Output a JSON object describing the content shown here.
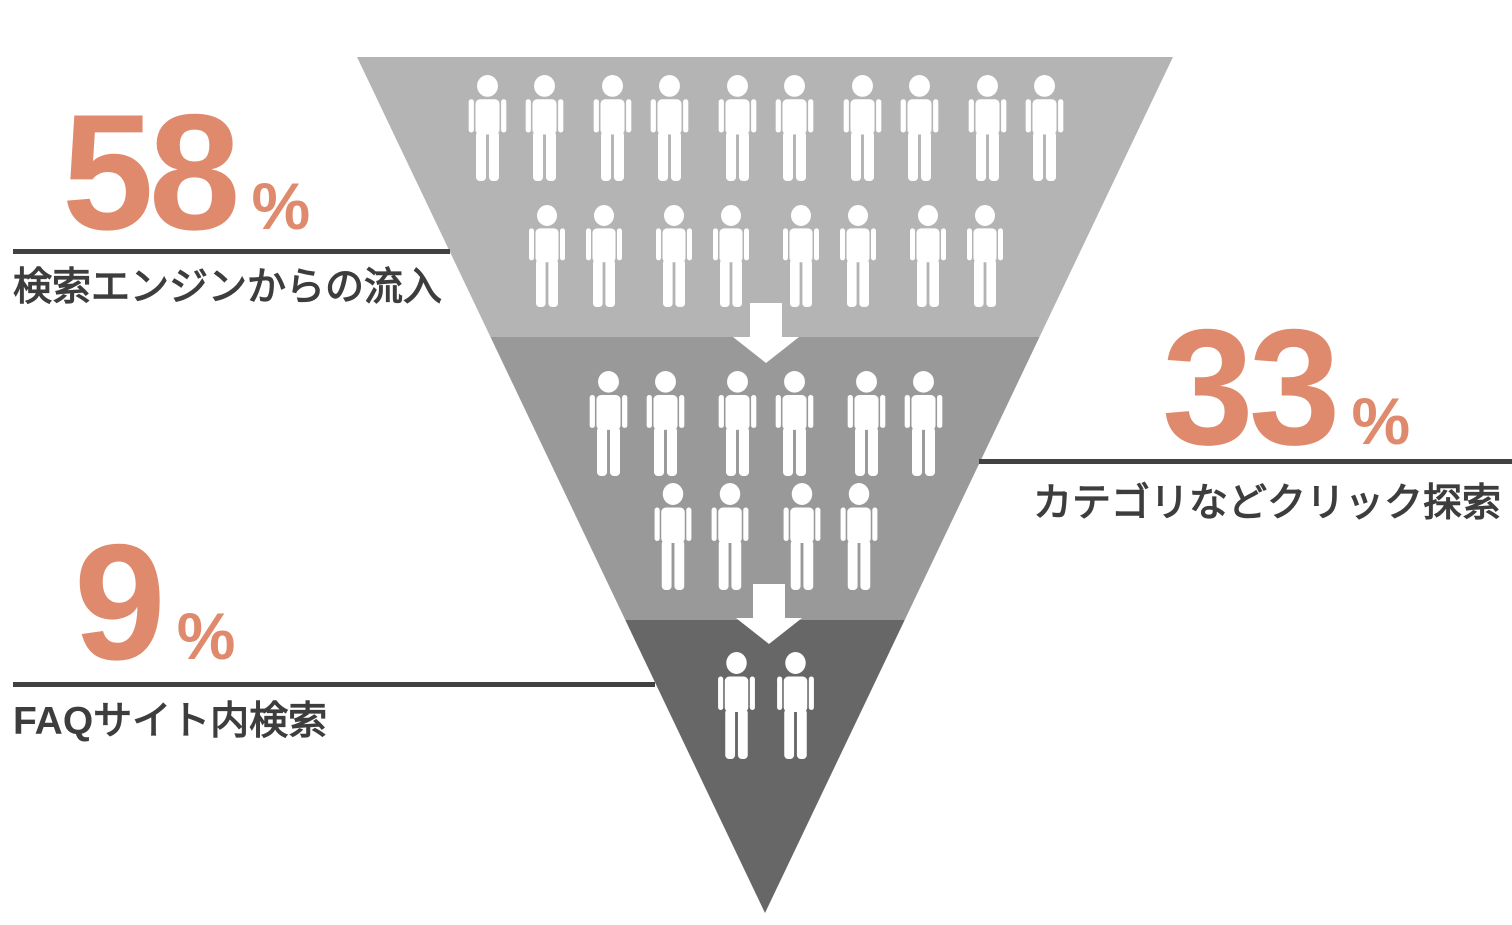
{
  "chart_data": {
    "type": "funnel",
    "orientation": "inverted-triangle",
    "title": "",
    "unit": "%",
    "background": "#ffffff",
    "accent_color": "#df8a6c",
    "text_color": "#3d3d3d",
    "leader_line_color": "#414141",
    "icon_color": "#ffffff",
    "legend_position": "none",
    "stages": [
      {
        "label": "検索エンジンからの流入",
        "value": 58,
        "unit": "%",
        "people_icons": 18,
        "icon_rows": [
          10,
          8
        ],
        "color": "#b4b4b4",
        "label_side": "left"
      },
      {
        "label": "カテゴリなどクリック探索",
        "value": 33,
        "unit": "%",
        "people_icons": 10,
        "icon_rows": [
          6,
          4
        ],
        "color": "#999999",
        "label_side": "right"
      },
      {
        "label": "FAQサイト内検索",
        "value": 9,
        "unit": "%",
        "people_icons": 2,
        "icon_rows": [
          2
        ],
        "color": "#676767",
        "label_side": "left"
      }
    ],
    "icons": {
      "person": "person-icon",
      "down_arrow": "down-arrow-icon"
    }
  }
}
